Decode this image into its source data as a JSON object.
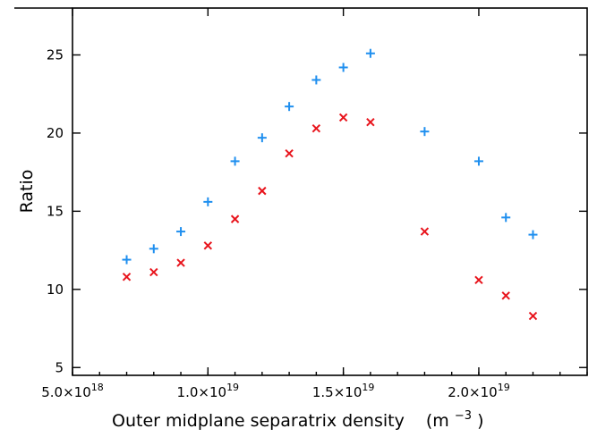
{
  "chart_data": {
    "type": "scatter",
    "title": "",
    "xlabel": "Outer midplane separatrix density",
    "xlabel_unit_base": "(m",
    "xlabel_unit_exp": "−3",
    "xlabel_unit_close": ")",
    "ylabel": "Ratio",
    "xlim": [
      5e+18,
      2.4e+19
    ],
    "ylim": [
      4.5,
      28
    ],
    "x_ticks": [
      {
        "value": 5e+18,
        "mantissa": "5.0×10",
        "exp": "18"
      },
      {
        "value": 1e+19,
        "mantissa": "1.0×10",
        "exp": "19"
      },
      {
        "value": 1.5e+19,
        "mantissa": "1.5×10",
        "exp": "19"
      },
      {
        "value": 2e+19,
        "mantissa": "2.0×10",
        "exp": "19"
      }
    ],
    "y_ticks": [
      5,
      10,
      15,
      20,
      25
    ],
    "grid": false,
    "legend": "none",
    "series": [
      {
        "marker": "plus",
        "color": "#1f8fef",
        "x": [
          7e+18,
          8e+18,
          9e+18,
          1e+19,
          1.1e+19,
          1.2e+19,
          1.3e+19,
          1.4e+19,
          1.5e+19,
          1.6e+19,
          1.8e+19,
          2e+19,
          2.1e+19,
          2.2e+19
        ],
        "y": [
          11.9,
          12.6,
          13.7,
          15.6,
          18.2,
          19.7,
          21.7,
          23.4,
          24.2,
          25.1,
          20.1,
          18.2,
          14.6,
          13.5
        ]
      },
      {
        "marker": "cross",
        "color": "#e8141c",
        "x": [
          7e+18,
          8e+18,
          9e+18,
          1e+19,
          1.1e+19,
          1.2e+19,
          1.3e+19,
          1.4e+19,
          1.5e+19,
          1.6e+19,
          1.8e+19,
          2e+19,
          2.1e+19,
          2.2e+19
        ],
        "y": [
          10.8,
          11.1,
          11.7,
          12.8,
          14.5,
          16.3,
          18.7,
          20.3,
          21.0,
          20.7,
          13.7,
          10.6,
          9.6,
          8.3
        ]
      }
    ]
  }
}
